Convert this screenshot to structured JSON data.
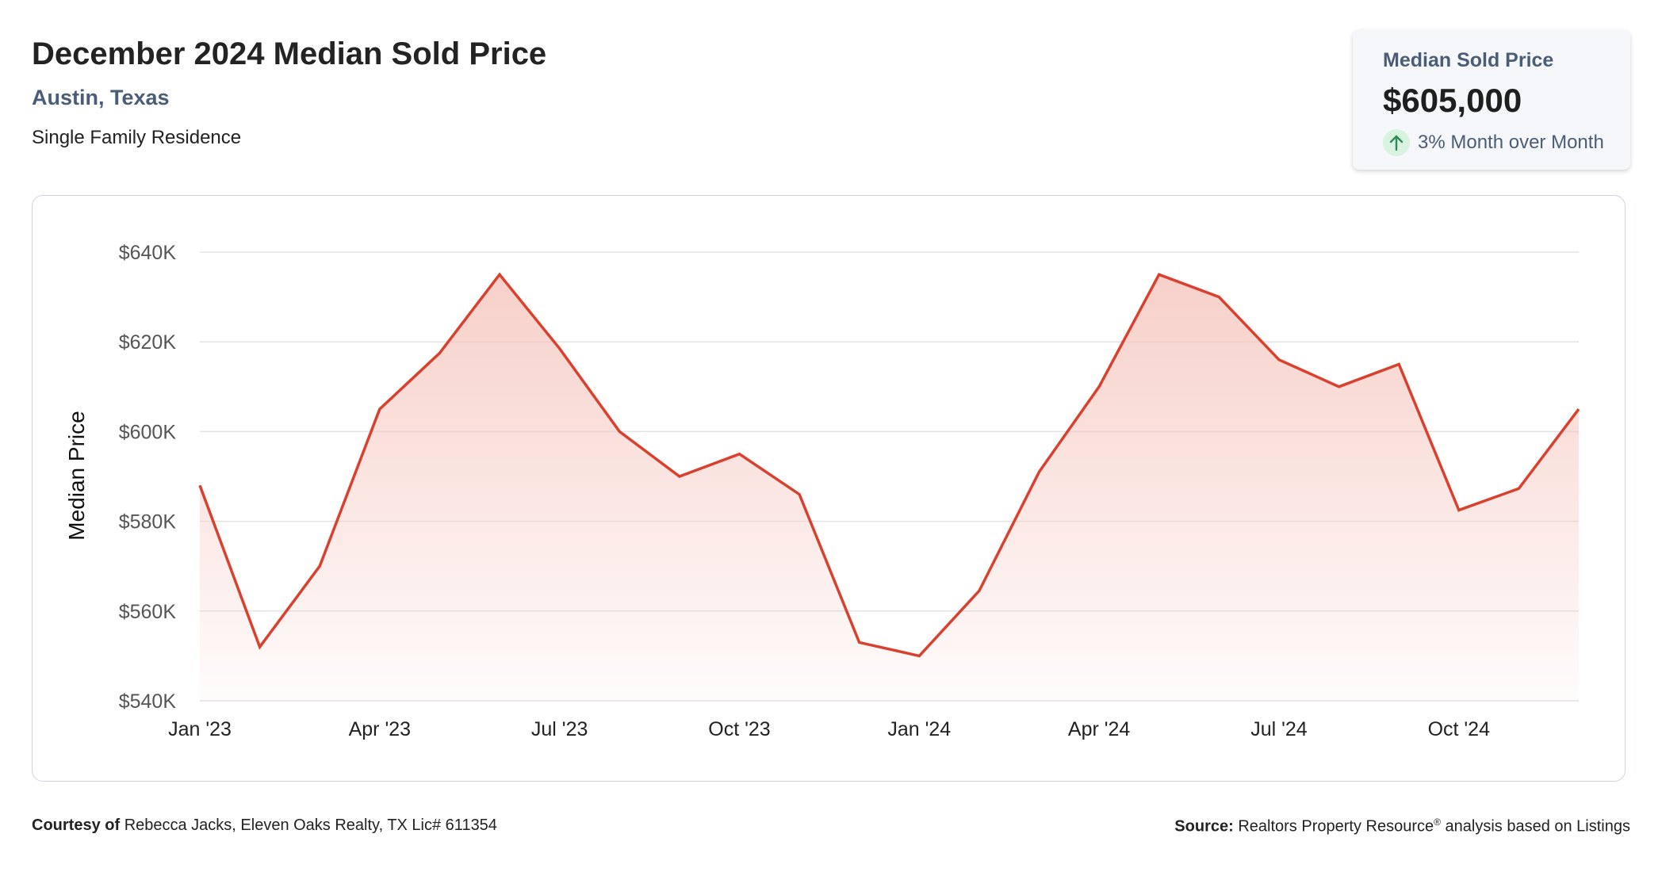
{
  "header": {
    "title": "December 2024 Median Sold Price",
    "location": "Austin, Texas",
    "property_type": "Single Family Residence"
  },
  "stat_card": {
    "label": "Median Sold Price",
    "value": "$605,000",
    "change": "3% Month over Month",
    "change_direction": "up",
    "icon": "arrow-up-icon"
  },
  "footer": {
    "courtesy_label": "Courtesy of",
    "courtesy_text": "Rebecca Jacks, Eleven Oaks Realty, TX Lic# 611354",
    "source_label": "Source:",
    "source_text_a": "Realtors Property Resource",
    "source_sup": "®",
    "source_text_b": " analysis based on Listings"
  },
  "colors": {
    "line": "#d9402e",
    "fill_top": "#f5c4bc",
    "grid": "#e3e3e3",
    "accent_text": "#4a5d77",
    "up_badge": "#d8f3e0",
    "up_arrow": "#2e8b57"
  },
  "chart_data": {
    "type": "area",
    "title": "",
    "xlabel": "",
    "ylabel": "Median Price",
    "x": [
      "Jan '23",
      "Feb '23",
      "Mar '23",
      "Apr '23",
      "May '23",
      "Jun '23",
      "Jul '23",
      "Aug '23",
      "Sep '23",
      "Oct '23",
      "Nov '23",
      "Dec '23",
      "Jan '24",
      "Feb '24",
      "Mar '24",
      "Apr '24",
      "May '24",
      "Jun '24",
      "Jul '24",
      "Aug '24",
      "Sep '24",
      "Oct '24",
      "Nov '24",
      "Dec '24"
    ],
    "series": [
      {
        "values": [
          588000,
          552000,
          570000,
          605000,
          617500,
          635000,
          618500,
          600000,
          590000,
          595000,
          586000,
          553000,
          550000,
          564500,
          591000,
          610000,
          635000,
          630000,
          616000,
          610000,
          615000,
          582500,
          587300,
          605000
        ]
      }
    ],
    "x_tick_labels": [
      "Jan '23",
      "Apr '23",
      "Jul '23",
      "Oct '23",
      "Jan '24",
      "Apr '24",
      "Jul '24",
      "Oct '24"
    ],
    "x_tick_indices": [
      0,
      3,
      6,
      9,
      12,
      15,
      18,
      21
    ],
    "y_ticks": [
      540000,
      560000,
      580000,
      600000,
      620000,
      640000
    ],
    "y_tick_labels": [
      "$540K",
      "$560K",
      "$580K",
      "$600K",
      "$620K",
      "$640K"
    ],
    "ylim": [
      540000,
      640000
    ],
    "grid": true,
    "legend": "none"
  }
}
